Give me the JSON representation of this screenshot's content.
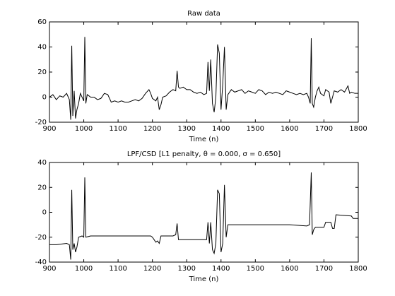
{
  "chart_data": [
    {
      "type": "line",
      "title": "Raw data",
      "xlabel": "Time (n)",
      "color": "#000000",
      "xlim": [
        900,
        1800
      ],
      "xticks": [
        900,
        1000,
        1100,
        1200,
        1300,
        1400,
        1500,
        1600,
        1700,
        1800
      ],
      "ylim": [
        -20,
        60
      ],
      "yticks": [
        -20,
        0,
        20,
        40,
        60
      ],
      "x": [
        900,
        910,
        920,
        930,
        940,
        950,
        958,
        962,
        965,
        968,
        972,
        976,
        980,
        985,
        990,
        995,
        1000,
        1003,
        1006,
        1010,
        1020,
        1030,
        1040,
        1050,
        1060,
        1070,
        1080,
        1090,
        1100,
        1110,
        1120,
        1130,
        1140,
        1150,
        1160,
        1170,
        1180,
        1190,
        1195,
        1200,
        1210,
        1215,
        1220,
        1225,
        1230,
        1240,
        1250,
        1260,
        1268,
        1272,
        1276,
        1280,
        1290,
        1300,
        1310,
        1320,
        1330,
        1340,
        1350,
        1358,
        1362,
        1366,
        1370,
        1375,
        1380,
        1385,
        1390,
        1395,
        1400,
        1405,
        1410,
        1415,
        1420,
        1430,
        1440,
        1450,
        1460,
        1470,
        1480,
        1490,
        1500,
        1510,
        1520,
        1530,
        1540,
        1550,
        1560,
        1570,
        1580,
        1590,
        1600,
        1610,
        1620,
        1630,
        1640,
        1650,
        1655,
        1660,
        1663,
        1666,
        1670,
        1675,
        1680,
        1685,
        1690,
        1700,
        1705,
        1710,
        1715,
        1720,
        1725,
        1730,
        1740,
        1750,
        1760,
        1770,
        1775,
        1780,
        1790,
        1800
      ],
      "values": [
        0,
        2,
        -2,
        1,
        0,
        3,
        -2,
        -18,
        41,
        -15,
        5,
        -17,
        -10,
        -5,
        3,
        0,
        -3,
        48,
        -5,
        2,
        0,
        0,
        -2,
        -1,
        3,
        2,
        -4,
        -3,
        -4,
        -3,
        -4,
        -4,
        -3,
        -2,
        -3,
        -1,
        3,
        6,
        3,
        -1,
        -3,
        0,
        -10,
        -6,
        0,
        1,
        4,
        6,
        5,
        21,
        8,
        7,
        8,
        6,
        6,
        4,
        3,
        4,
        2,
        3,
        28,
        5,
        30,
        -5,
        -12,
        0,
        42,
        35,
        -10,
        10,
        40,
        -10,
        2,
        6,
        4,
        5,
        6,
        3,
        5,
        4,
        3,
        6,
        5,
        2,
        4,
        3,
        4,
        3,
        2,
        5,
        4,
        3,
        2,
        3,
        2,
        3,
        0,
        -5,
        47,
        -5,
        -8,
        0,
        5,
        8,
        3,
        1,
        6,
        5,
        4,
        -5,
        0,
        5,
        4,
        6,
        4,
        9,
        3,
        4,
        3,
        3
      ]
    },
    {
      "type": "line",
      "title": "LPF/CSD [L1 penalty,  θ = 0.000,  σ = 0.650]",
      "xlabel": "Time (n)",
      "color": "#000000",
      "xlim": [
        900,
        1800
      ],
      "xticks": [
        900,
        1000,
        1100,
        1200,
        1300,
        1400,
        1500,
        1600,
        1700,
        1800
      ],
      "ylim": [
        -40,
        40
      ],
      "yticks": [
        -40,
        -20,
        0,
        20,
        40
      ],
      "x": [
        900,
        920,
        950,
        958,
        962,
        965,
        968,
        972,
        976,
        980,
        985,
        995,
        1000,
        1003,
        1006,
        1020,
        1050,
        1100,
        1150,
        1195,
        1200,
        1210,
        1215,
        1220,
        1225,
        1260,
        1268,
        1272,
        1276,
        1300,
        1350,
        1358,
        1362,
        1366,
        1370,
        1375,
        1380,
        1385,
        1390,
        1395,
        1400,
        1405,
        1410,
        1415,
        1420,
        1450,
        1500,
        1550,
        1600,
        1650,
        1658,
        1663,
        1666,
        1670,
        1675,
        1700,
        1705,
        1720,
        1725,
        1730,
        1735,
        1780,
        1785,
        1800
      ],
      "values": [
        -26,
        -26,
        -25,
        -26,
        -38,
        18,
        -30,
        -25,
        -32,
        -28,
        -20,
        -19,
        -20,
        28,
        -20,
        -19,
        -19,
        -19,
        -19,
        -19,
        -20,
        -24,
        -23,
        -25,
        -19,
        -19,
        -18,
        -9,
        -22,
        -22,
        -22,
        -22,
        -8,
        -25,
        -8,
        -30,
        -33,
        -25,
        18,
        15,
        -32,
        -25,
        22,
        -20,
        -10,
        -10,
        -10,
        -10,
        -10,
        -11,
        -10,
        32,
        -18,
        -14,
        -12,
        -12,
        -8,
        -8,
        -13,
        -13,
        -2,
        -3,
        -5,
        -5
      ]
    }
  ]
}
